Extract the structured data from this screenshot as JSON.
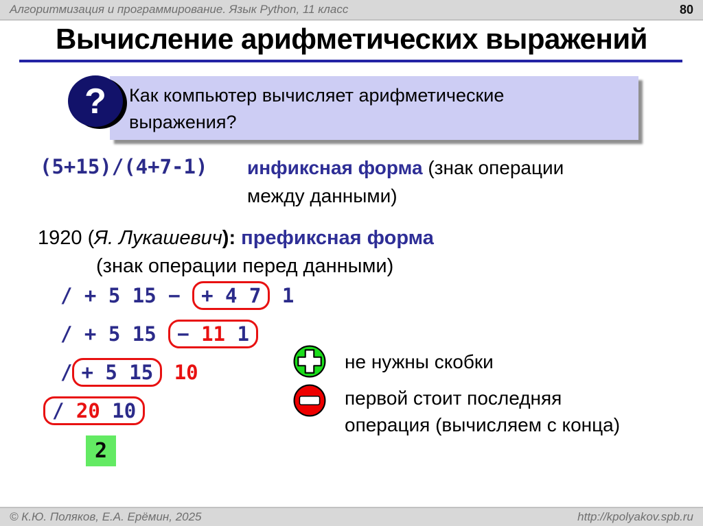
{
  "header": {
    "course": "Алгоритмизация и программирование. Язык Python, 11 класс",
    "page": "80"
  },
  "title": "Вычисление арифметических выражений",
  "question": {
    "mark": "?",
    "line1": "Как компьютер вычисляет арифметические",
    "line2": "выражения?"
  },
  "infix": {
    "expr": "(5+15)/(4+7-1)",
    "term": "инфиксная форма",
    "note_line1": " (знак операции",
    "note_line2": "между данными)"
  },
  "prefix": {
    "year_open": "1920 (",
    "author": "Я. Лукашевич",
    "close_paren": "):",
    "term": " префиксная форма",
    "note": "(знак операции перед данными)",
    "lines": [
      {
        "before": [
          {
            "t": "/ + 5 15 − ",
            "c": "navy"
          }
        ],
        "box": [
          {
            "t": "+ 4 7",
            "c": "navy"
          }
        ],
        "after": [
          {
            "t": " 1",
            "c": "navy"
          }
        ]
      },
      {
        "before": [
          {
            "t": "/ + 5 15 ",
            "c": "navy"
          }
        ],
        "box": [
          {
            "t": "− ",
            "c": "navy"
          },
          {
            "t": "11",
            "c": "red"
          },
          {
            "t": " 1",
            "c": "navy"
          }
        ],
        "after": []
      },
      {
        "before": [
          {
            "t": "/",
            "c": "navy"
          }
        ],
        "box": [
          {
            "t": "+ 5 15",
            "c": "navy"
          }
        ],
        "after": [
          {
            "t": " ",
            "c": "navy"
          },
          {
            "t": "10",
            "c": "red"
          }
        ]
      },
      {
        "before": [],
        "box": [
          {
            "t": "/ ",
            "c": "navy"
          },
          {
            "t": "20",
            "c": "red"
          },
          {
            "t": " 10",
            "c": "navy"
          }
        ],
        "after": []
      }
    ],
    "result": "2"
  },
  "legend": {
    "pros": "не нужны скобки",
    "cons_line1": "первой стоит последняя",
    "cons_line2": "операция (вычисляем с конца)"
  },
  "footer": {
    "copyright": "© К.Ю. Поляков, Е.А. Ерёмин, 2025",
    "url": "http://kpolyakov.spb.ru"
  },
  "colors": {
    "mono_navy": "#2b2b8a",
    "term_blue": "#2e2e96",
    "highlight_red": "#e81111",
    "result_green": "#63ea63",
    "panel_lavender": "#cdcdf4",
    "circle_navy": "#12126a",
    "bar_gray": "#d8d8d8",
    "icon_green": "#1bdd1b",
    "icon_red": "#ee0000"
  }
}
